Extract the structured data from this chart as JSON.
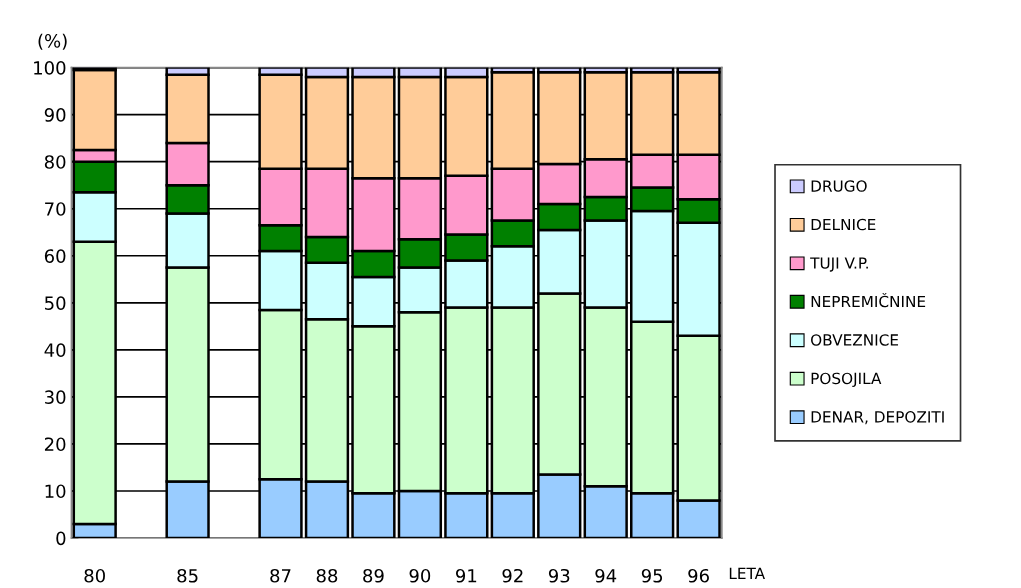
{
  "chart_data": {
    "type": "bar",
    "stacked": true,
    "ylabel": "(%)",
    "xlabel": "LETA",
    "categories": [
      "80",
      null,
      "85",
      null,
      "87",
      "88",
      "89",
      "90",
      "91",
      "92",
      "93",
      "94",
      "95",
      "96"
    ],
    "ylim": [
      0,
      100
    ],
    "yticks": [
      0,
      10,
      20,
      30,
      40,
      50,
      60,
      70,
      80,
      90,
      100
    ],
    "grid": "y",
    "legend": "right",
    "series": [
      {
        "name": "DENAR, DEPOZITI",
        "color": "#99ccff",
        "values": [
          3,
          null,
          12,
          null,
          12.5,
          12,
          9.5,
          10,
          9.5,
          9.5,
          13.5,
          11,
          9.5,
          8
        ]
      },
      {
        "name": "POSOJILA",
        "color": "#ccffcc",
        "values": [
          60,
          null,
          45.5,
          null,
          36,
          34.5,
          35.5,
          38,
          39.5,
          39.5,
          38.5,
          38,
          36.5,
          35
        ]
      },
      {
        "name": "OBVEZNICE",
        "color": "#ccffff",
        "values": [
          10.5,
          null,
          11.5,
          null,
          12.5,
          12,
          10.5,
          9.5,
          10,
          13,
          13.5,
          18.5,
          23.5,
          24
        ]
      },
      {
        "name": "NEPREMIČNINE",
        "color": "#008000",
        "values": [
          6.5,
          null,
          6,
          null,
          5.5,
          5.5,
          5.5,
          6,
          5.5,
          5.5,
          5.5,
          5,
          5,
          5
        ]
      },
      {
        "name": "TUJI V.P.",
        "color": "#ff99cc",
        "values": [
          2.5,
          null,
          9,
          null,
          12,
          14.5,
          15.5,
          13,
          12.5,
          11,
          8.5,
          8,
          7,
          9.5
        ]
      },
      {
        "name": "DELNICE",
        "color": "#ffcc99",
        "values": [
          17,
          null,
          14.5,
          null,
          20,
          19.5,
          21.5,
          21.5,
          21,
          20.5,
          19.5,
          18.5,
          17.5,
          17.5
        ]
      },
      {
        "name": "DRUGO",
        "color": "#ccccff",
        "values": [
          0.5,
          null,
          1.5,
          null,
          1.5,
          2,
          2,
          2,
          2,
          1,
          1,
          1,
          1,
          1
        ]
      }
    ]
  }
}
